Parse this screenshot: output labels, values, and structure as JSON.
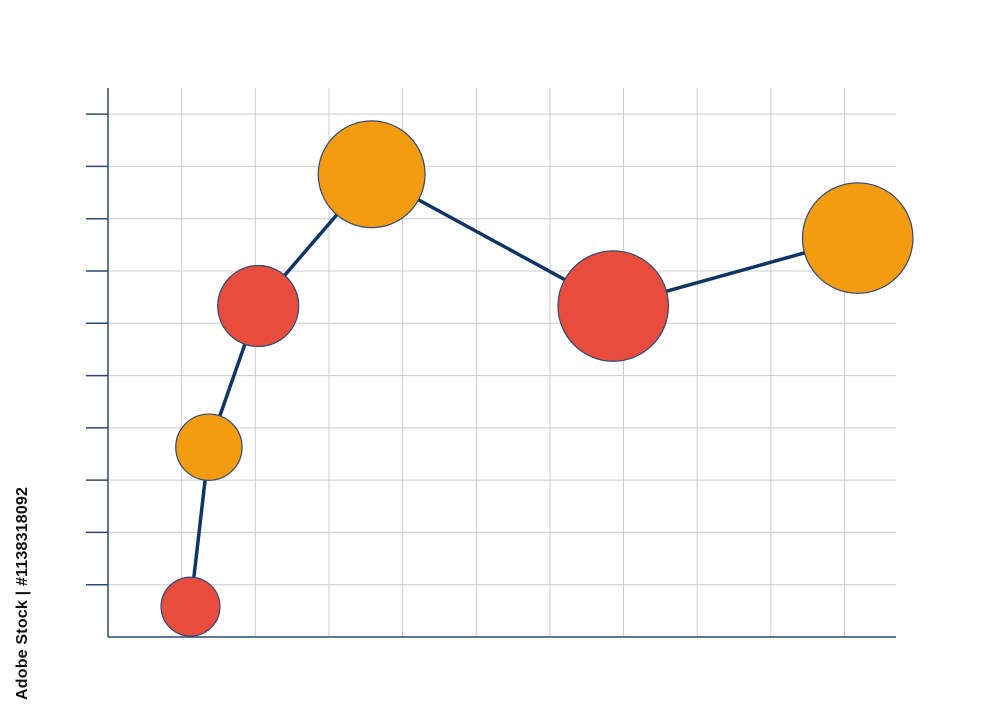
{
  "chart_data": {
    "type": "scatter",
    "title": "",
    "xlabel": "",
    "ylabel": "",
    "xlim": [
      0,
      10.7
    ],
    "ylim": [
      0,
      10.5
    ],
    "x_gridlines": [
      1,
      2,
      3,
      4,
      5,
      6,
      7,
      8,
      9,
      10
    ],
    "y_gridlines": [
      1,
      2,
      3,
      4,
      5,
      6,
      7,
      8,
      9,
      10
    ],
    "y_ticks": [
      1,
      2,
      3,
      4,
      5,
      6,
      7,
      8,
      9,
      10
    ],
    "grid": true,
    "legend": "none",
    "line_color": "#0f3566",
    "bubble_stroke": "#2a4a7a",
    "series": [
      {
        "points": [
          {
            "x": 1.12,
            "y": 0.58,
            "size": 0.8,
            "color": "#e84c3d"
          },
          {
            "x": 1.37,
            "y": 3.63,
            "size": 0.9,
            "color": "#f39c12"
          },
          {
            "x": 2.04,
            "y": 6.33,
            "size": 1.1,
            "color": "#e84c3d"
          },
          {
            "x": 3.58,
            "y": 8.85,
            "size": 1.45,
            "color": "#f39c12"
          },
          {
            "x": 6.86,
            "y": 6.33,
            "size": 1.5,
            "color": "#e84c3d"
          },
          {
            "x": 10.18,
            "y": 7.63,
            "size": 1.5,
            "color": "#f39c12"
          }
        ]
      }
    ]
  },
  "watermark": {
    "stock_id": "Adobe Stock | #1138318092"
  }
}
